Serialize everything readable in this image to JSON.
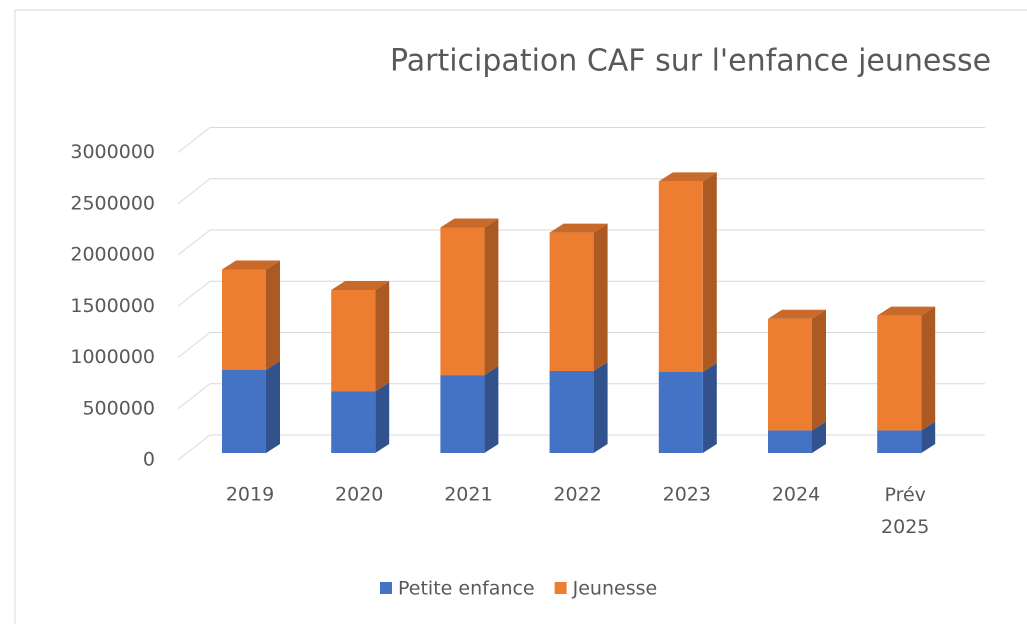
{
  "chart_data": {
    "type": "bar3d_stacked",
    "title": "Participation CAF sur l'enfance jeunesse",
    "categories": [
      "2019",
      "2020",
      "2021",
      "2022",
      "2023",
      "2024",
      "Prév 2025"
    ],
    "series": [
      {
        "name": "Petite enfance",
        "color": "#4472c4",
        "values": [
          810000,
          600000,
          760000,
          800000,
          790000,
          220000,
          220000
        ]
      },
      {
        "name": "Jeunesse",
        "color": "#ed7d31",
        "values": [
          980000,
          990000,
          1440000,
          1350000,
          1860000,
          1090000,
          1120000
        ]
      }
    ],
    "ylim": [
      0,
      3000000
    ],
    "yticks": [
      0,
      500000,
      1000000,
      1500000,
      2000000,
      2500000,
      3000000
    ],
    "grid": true,
    "legend": "bottom"
  }
}
